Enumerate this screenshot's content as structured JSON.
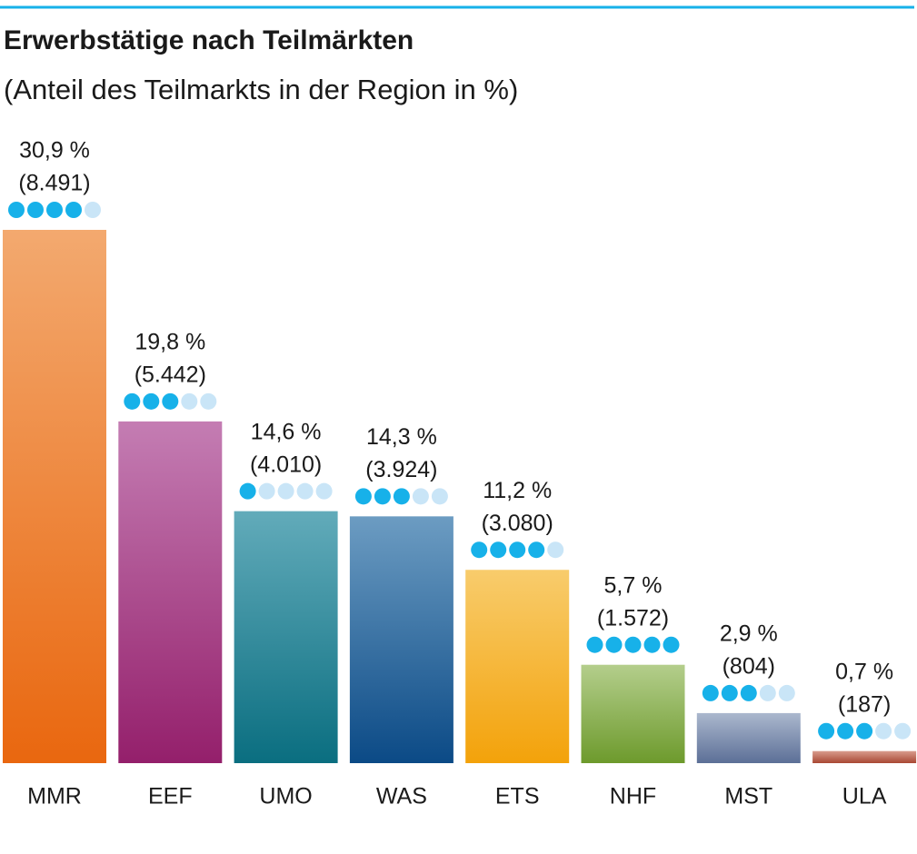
{
  "chart_data": {
    "type": "bar",
    "title": "Erwerbstätige nach Teilmärkten",
    "subtitle": "(Anteil des Teilmarkts in der Region in %)",
    "categories": [
      "MMR",
      "EEF",
      "UMO",
      "WAS",
      "ETS",
      "NHF",
      "MST",
      "ULA"
    ],
    "values": [
      30.9,
      19.8,
      14.6,
      14.3,
      11.2,
      5.7,
      2.9,
      0.7
    ],
    "value_labels": [
      "30,9 %",
      "19,8 %",
      "14,6 %",
      "14,3 %",
      "11,2 %",
      "5,7 %",
      "2,9 %",
      "0,7 %"
    ],
    "counts": [
      8491,
      5442,
      4010,
      3924,
      3080,
      1572,
      804,
      187
    ],
    "count_labels": [
      "(8.491)",
      "(5.442)",
      "(4.010)",
      "(3.924)",
      "(3.080)",
      "(1.572)",
      "(804)",
      "(187)"
    ],
    "ratings": [
      4,
      3,
      1,
      3,
      4,
      5,
      3,
      3
    ],
    "rating_max": 5,
    "rating_colors": [
      "#17b1e9",
      "#c9e5f7"
    ],
    "colors": [
      [
        "#f3a96f",
        "#e9670f"
      ],
      [
        "#c47db3",
        "#941f6b"
      ],
      [
        "#62abba",
        "#0a6e80"
      ],
      [
        "#6c9cc2",
        "#0b4a86"
      ],
      [
        "#f8cc6c",
        "#f3a20a"
      ],
      [
        "#b4ce8c",
        "#6d9a2c"
      ],
      [
        "#abb8ce",
        "#5c6f97"
      ],
      [
        "#d99c8d",
        "#a84833"
      ]
    ],
    "accent_color": "#17b1e9"
  }
}
